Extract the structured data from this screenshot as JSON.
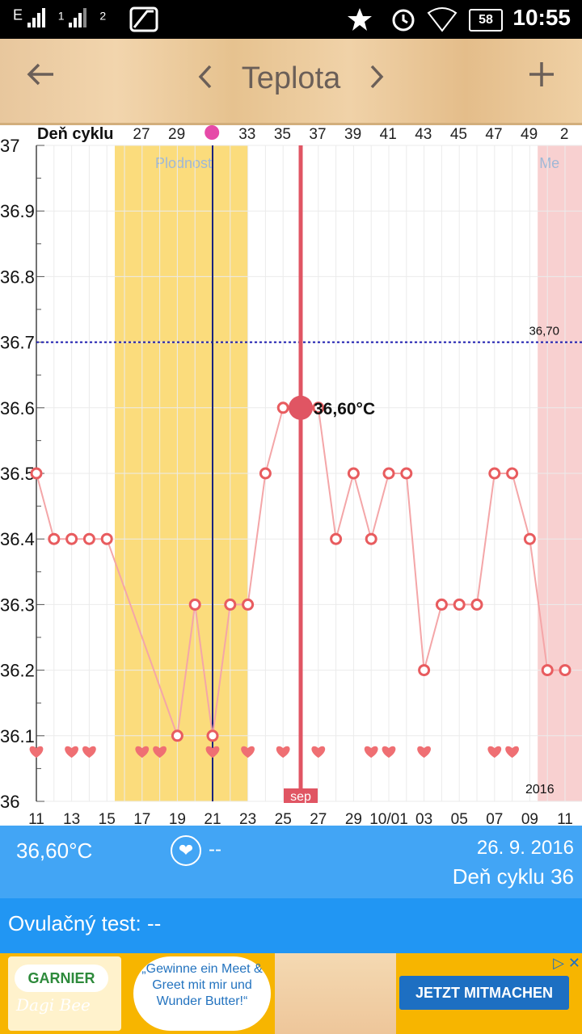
{
  "status_bar": {
    "network": "E",
    "sim1": "1",
    "sim2": "2",
    "battery": "58",
    "time": "10:55"
  },
  "toolbar": {
    "back_icon": "arrow-left-icon",
    "prev_icon": "chevron-left-icon",
    "title": "Teplota",
    "next_icon": "chevron-right-icon",
    "add_icon": "plus-icon"
  },
  "chart_data": {
    "type": "line",
    "top_axis_label": "Deň cyklu",
    "top_ticks": [
      "27",
      "29",
      "31",
      "33",
      "35",
      "37",
      "39",
      "41",
      "43",
      "45",
      "47",
      "49",
      "2"
    ],
    "ovulation_marker_day": "31",
    "x_tick_labels": [
      "11",
      "13",
      "15",
      "17",
      "19",
      "21",
      "23",
      "25",
      "27",
      "29",
      "10/01",
      "03",
      "05",
      "07",
      "09",
      "11"
    ],
    "ylim": [
      36.0,
      37.0
    ],
    "y_tick_labels": [
      "36",
      "36.1",
      "36.2",
      "36.3",
      "36.4",
      "36.5",
      "36.6",
      "36.7",
      "36.8",
      "36.9",
      "37"
    ],
    "series": [
      {
        "points": [
          {
            "x": "11",
            "y": 36.5
          },
          {
            "x": "12",
            "y": 36.4
          },
          {
            "x": "13",
            "y": 36.4
          },
          {
            "x": "14",
            "y": 36.4
          },
          {
            "x": "15",
            "y": 36.4
          },
          {
            "x": "19",
            "y": 36.1
          },
          {
            "x": "20",
            "y": 36.3
          },
          {
            "x": "21",
            "y": 36.1
          },
          {
            "x": "22",
            "y": 36.3
          },
          {
            "x": "23",
            "y": 36.3
          },
          {
            "x": "24",
            "y": 36.5
          },
          {
            "x": "25",
            "y": 36.6
          },
          {
            "x": "26",
            "y": 36.6
          },
          {
            "x": "27",
            "y": 36.6
          },
          {
            "x": "28",
            "y": 36.4
          },
          {
            "x": "29",
            "y": 36.5
          },
          {
            "x": "30",
            "y": 36.4
          },
          {
            "x": "10/01",
            "y": 36.5
          },
          {
            "x": "02",
            "y": 36.5
          },
          {
            "x": "03",
            "y": 36.2
          },
          {
            "x": "04",
            "y": 36.3
          },
          {
            "x": "05",
            "y": 36.3
          },
          {
            "x": "06",
            "y": 36.3
          },
          {
            "x": "07",
            "y": 36.5
          },
          {
            "x": "08",
            "y": 36.5
          },
          {
            "x": "09",
            "y": 36.4
          },
          {
            "x": "10",
            "y": 36.2
          },
          {
            "x": "11",
            "y": 36.2
          }
        ]
      }
    ],
    "heart_days": [
      "11",
      "13",
      "14",
      "17",
      "18",
      "21",
      "23",
      "25",
      "27",
      "30",
      "10/01",
      "03",
      "07",
      "08"
    ],
    "fertile_window": {
      "label": "Plodnosť",
      "from": "16",
      "to": "23"
    },
    "menstruation": {
      "label": "Me",
      "from": "10"
    },
    "cover_line": {
      "value": 36.7,
      "label": "36,70"
    },
    "ovulation_day": "21",
    "selected": {
      "day": "26",
      "value": 36.6,
      "label": "36,60°C",
      "month_label": "sep"
    },
    "year_label": "2016",
    "colors": {
      "line": "#f4a6a8",
      "point": "#e85c5f",
      "fertile": "#fbdc7c",
      "menses": "#f8d0d0",
      "ovulation_line": "#1a237e",
      "cover_line": "#1a1ab0",
      "selected": "#e05563"
    }
  },
  "info_bar": {
    "temperature": "36,60°C",
    "heart_icon": "heart-icon",
    "intercourse": "--",
    "date": "26. 9. 2016",
    "cycle_day": "Deň cyklu 36"
  },
  "ovulation_test": {
    "label": "Ovulačný test: --"
  },
  "ad": {
    "brand": "GARNIER",
    "signature": "Dagi Bee",
    "bubble": "„Gewinne ein Meet & Greet mit mir und Wunder Butter!“",
    "cta": "JETZT MITMACHEN"
  }
}
